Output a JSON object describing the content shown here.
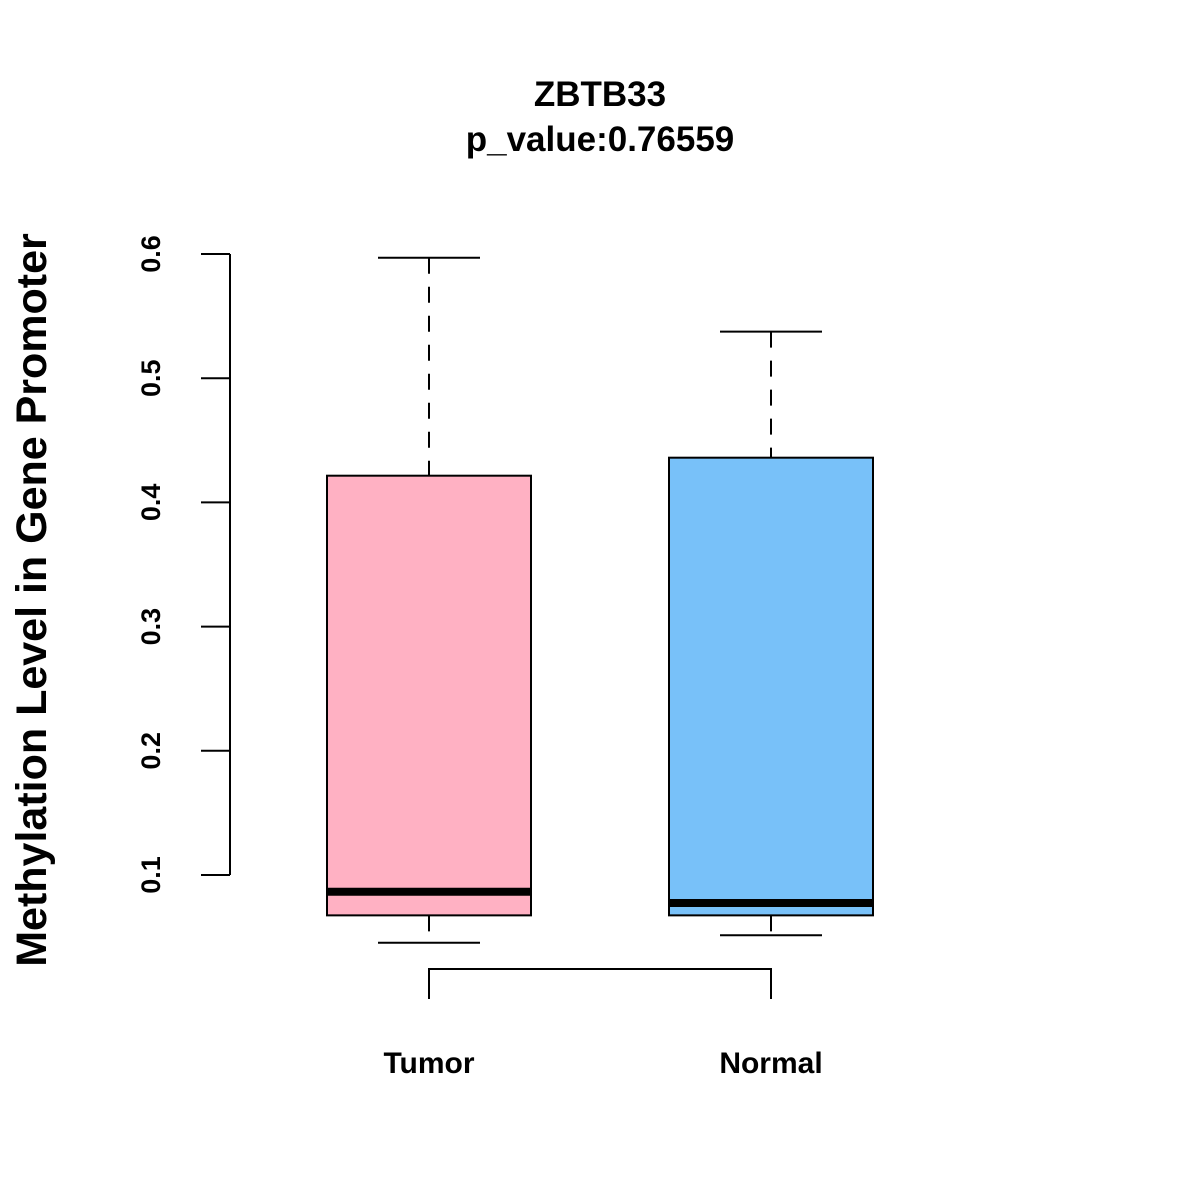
{
  "chart_data": {
    "type": "boxplot",
    "title": "ZBTB33",
    "subtitle": "p_value:0.76559",
    "xlabel": "",
    "ylabel": "Methylation Level in Gene Promoter",
    "ylim": [
      0.1,
      0.6
    ],
    "yticks": [
      0.1,
      0.2,
      0.3,
      0.4,
      0.5,
      0.6
    ],
    "ytick_labels": [
      "0.1",
      "0.2",
      "0.3",
      "0.4",
      "0.5",
      "0.6"
    ],
    "categories": [
      "Tumor",
      "Normal"
    ],
    "series": [
      {
        "name": "Tumor",
        "color": "#FFB1C3",
        "whisker_low": 0.0455,
        "q1": 0.0675,
        "median": 0.0865,
        "q3": 0.4215,
        "whisker_high": 0.597
      },
      {
        "name": "Normal",
        "color": "#78C1F9",
        "whisker_low": 0.0515,
        "q1": 0.0675,
        "median": 0.0775,
        "q3": 0.436,
        "whisker_high": 0.5375
      }
    ],
    "comparison_bracket": {
      "from": "Tumor",
      "to": "Normal"
    }
  }
}
